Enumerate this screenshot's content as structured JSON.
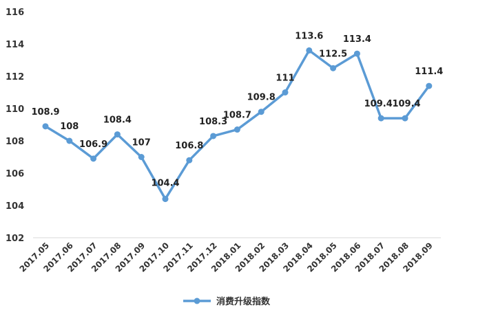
{
  "chart_data": {
    "type": "line",
    "categories": [
      "2017.05",
      "2017.06",
      "2017.07",
      "2017.08",
      "2017.09",
      "2017.10",
      "2017.11",
      "2017.12",
      "2018.01",
      "2018.02",
      "2018.03",
      "2018.04",
      "2018.05",
      "2018.06",
      "2018.07",
      "2018.08",
      "2018.09"
    ],
    "series": [
      {
        "name": "消费升级指数",
        "values": [
          108.9,
          108,
          106.9,
          108.4,
          107,
          104.4,
          106.8,
          108.3,
          108.7,
          109.8,
          111,
          113.6,
          112.5,
          113.4,
          109.4,
          109.4,
          111.4
        ],
        "labels": [
          "108.9",
          "108",
          "106.9",
          "108.4",
          "107",
          "104.4",
          "106.8",
          "108.3",
          "108.7",
          "109.8",
          "111",
          "113.6",
          "112.5",
          "113.4",
          "109.4",
          "109.4",
          "111.4"
        ],
        "color": "#5b9bd5"
      }
    ],
    "ylim": [
      102,
      116
    ],
    "yticks": [
      "102",
      "104",
      "106",
      "108",
      "110",
      "112",
      "114",
      "116"
    ],
    "grid": false,
    "legend": "bottom-center",
    "title": "",
    "xlabel": "",
    "ylabel": ""
  }
}
